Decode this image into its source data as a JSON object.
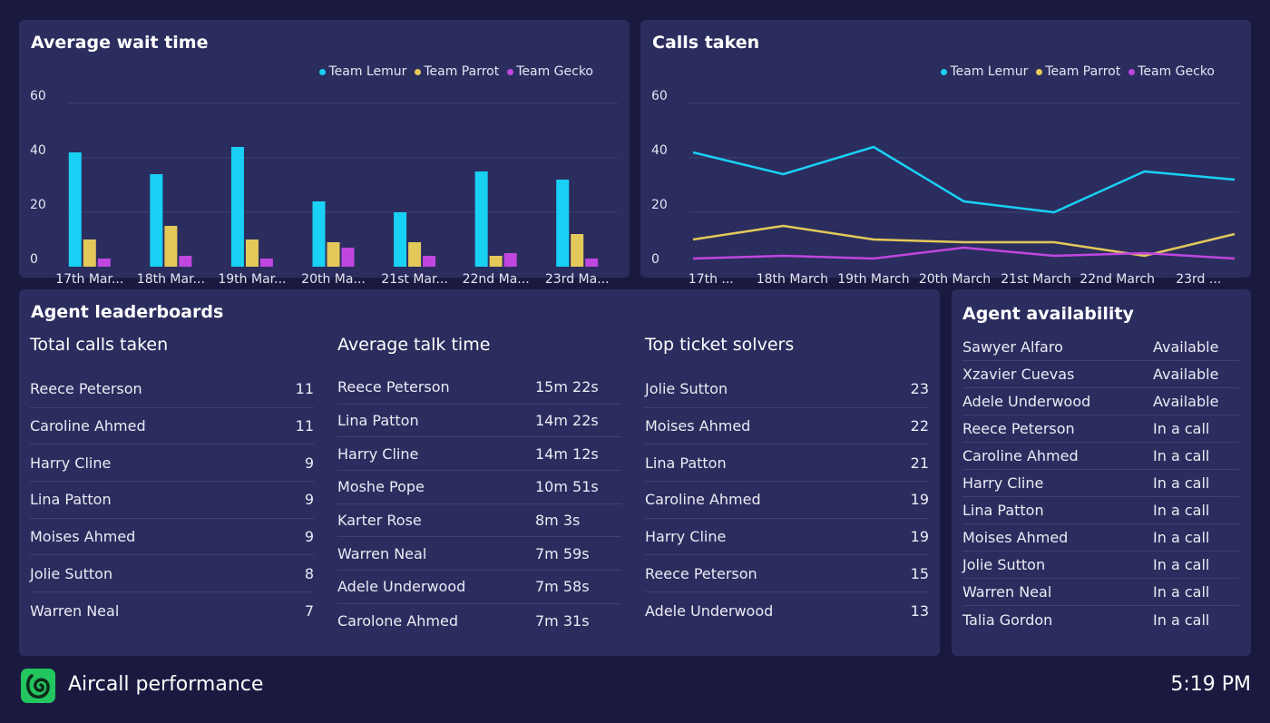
{
  "colors": {
    "lemur": "#19d0f5",
    "parrot": "#e3c95a",
    "gecko": "#c046e0",
    "grid": "#3f4170",
    "panel": "#2b2d5e",
    "background": "#1a1a40",
    "logo": "#22c55e"
  },
  "wait_chart": {
    "title": "Average wait time",
    "legend": [
      "Team Lemur",
      "Team Parrot",
      "Team Gecko"
    ]
  },
  "calls_chart": {
    "title": "Calls taken",
    "legend": [
      "Team Lemur",
      "Team Parrot",
      "Team Gecko"
    ]
  },
  "chart_data": [
    {
      "type": "bar",
      "title": "Average wait time",
      "categories": [
        "17th Mar...",
        "18th Mar...",
        "19th Mar...",
        "20th Ma...",
        "21st Mar...",
        "22nd Ma...",
        "23rd Ma..."
      ],
      "series": [
        {
          "name": "Team Lemur",
          "values": [
            42,
            34,
            44,
            24,
            20,
            35,
            32
          ]
        },
        {
          "name": "Team Parrot",
          "values": [
            10,
            15,
            10,
            9,
            9,
            4,
            12
          ]
        },
        {
          "name": "Team Gecko",
          "values": [
            3,
            4,
            3,
            7,
            4,
            5,
            3
          ]
        }
      ],
      "yticks": [
        "0",
        "20",
        "40",
        "60"
      ],
      "ylim": [
        0,
        60
      ],
      "grid": true,
      "legend_position": "top-right"
    },
    {
      "type": "line",
      "title": "Calls taken",
      "categories": [
        "17th ...",
        "18th March",
        "19th March",
        "20th March",
        "21st March",
        "22nd March",
        "23rd ..."
      ],
      "series": [
        {
          "name": "Team Lemur",
          "values": [
            42,
            34,
            44,
            24,
            20,
            35,
            32
          ]
        },
        {
          "name": "Team Parrot",
          "values": [
            10,
            15,
            10,
            9,
            9,
            4,
            12
          ]
        },
        {
          "name": "Team Gecko",
          "values": [
            3,
            4,
            3,
            7,
            4,
            5,
            3
          ]
        }
      ],
      "yticks": [
        "0",
        "20",
        "40",
        "60"
      ],
      "ylim": [
        0,
        60
      ],
      "grid": true,
      "legend_position": "top-right"
    }
  ],
  "leaderboards": {
    "title": "Agent leaderboards",
    "boards": [
      {
        "title": "Total calls taken",
        "rows": [
          {
            "name": "Reece Peterson",
            "value": "11"
          },
          {
            "name": "Caroline Ahmed",
            "value": "11"
          },
          {
            "name": "Harry Cline",
            "value": "9"
          },
          {
            "name": "Lina Patton",
            "value": "9"
          },
          {
            "name": "Moises Ahmed",
            "value": "9"
          },
          {
            "name": "Jolie Sutton",
            "value": "8"
          },
          {
            "name": "Warren Neal",
            "value": "7"
          }
        ]
      },
      {
        "title": "Average talk time",
        "rows": [
          {
            "name": "Reece Peterson",
            "value": "15m 22s"
          },
          {
            "name": "Lina Patton",
            "value": "14m 22s"
          },
          {
            "name": "Harry Cline",
            "value": "14m 12s"
          },
          {
            "name": "Moshe Pope",
            "value": "10m 51s"
          },
          {
            "name": "Karter Rose",
            "value": "8m 3s"
          },
          {
            "name": "Warren Neal",
            "value": "7m 59s"
          },
          {
            "name": "Adele Underwood",
            "value": "7m 58s"
          },
          {
            "name": "Carolone Ahmed",
            "value": "7m 31s"
          }
        ]
      },
      {
        "title": "Top ticket solvers",
        "rows": [
          {
            "name": "Jolie Sutton",
            "value": "23"
          },
          {
            "name": "Moises Ahmed",
            "value": "22"
          },
          {
            "name": "Lina Patton",
            "value": "21"
          },
          {
            "name": "Caroline Ahmed",
            "value": "19"
          },
          {
            "name": "Harry Cline",
            "value": "19"
          },
          {
            "name": "Reece Peterson",
            "value": "15"
          },
          {
            "name": "Adele Underwood",
            "value": "13"
          }
        ]
      }
    ]
  },
  "availability": {
    "title": "Agent availability",
    "rows": [
      {
        "name": "Sawyer Alfaro",
        "status": "Available"
      },
      {
        "name": "Xzavier Cuevas",
        "status": "Available"
      },
      {
        "name": "Adele Underwood",
        "status": "Available"
      },
      {
        "name": "Reece Peterson",
        "status": "In a call"
      },
      {
        "name": "Caroline Ahmed",
        "status": "In a call"
      },
      {
        "name": "Harry Cline",
        "status": "In a call"
      },
      {
        "name": "Lina Patton",
        "status": "In a call"
      },
      {
        "name": "Moises Ahmed",
        "status": "In a call"
      },
      {
        "name": "Jolie Sutton",
        "status": "In a call"
      },
      {
        "name": "Warren Neal",
        "status": "In a call"
      },
      {
        "name": "Talia Gordon",
        "status": "In a call"
      }
    ]
  },
  "footer": {
    "logo_icon": "aircall-logo-icon",
    "title": "Aircall performance",
    "time": "5:19 PM"
  }
}
